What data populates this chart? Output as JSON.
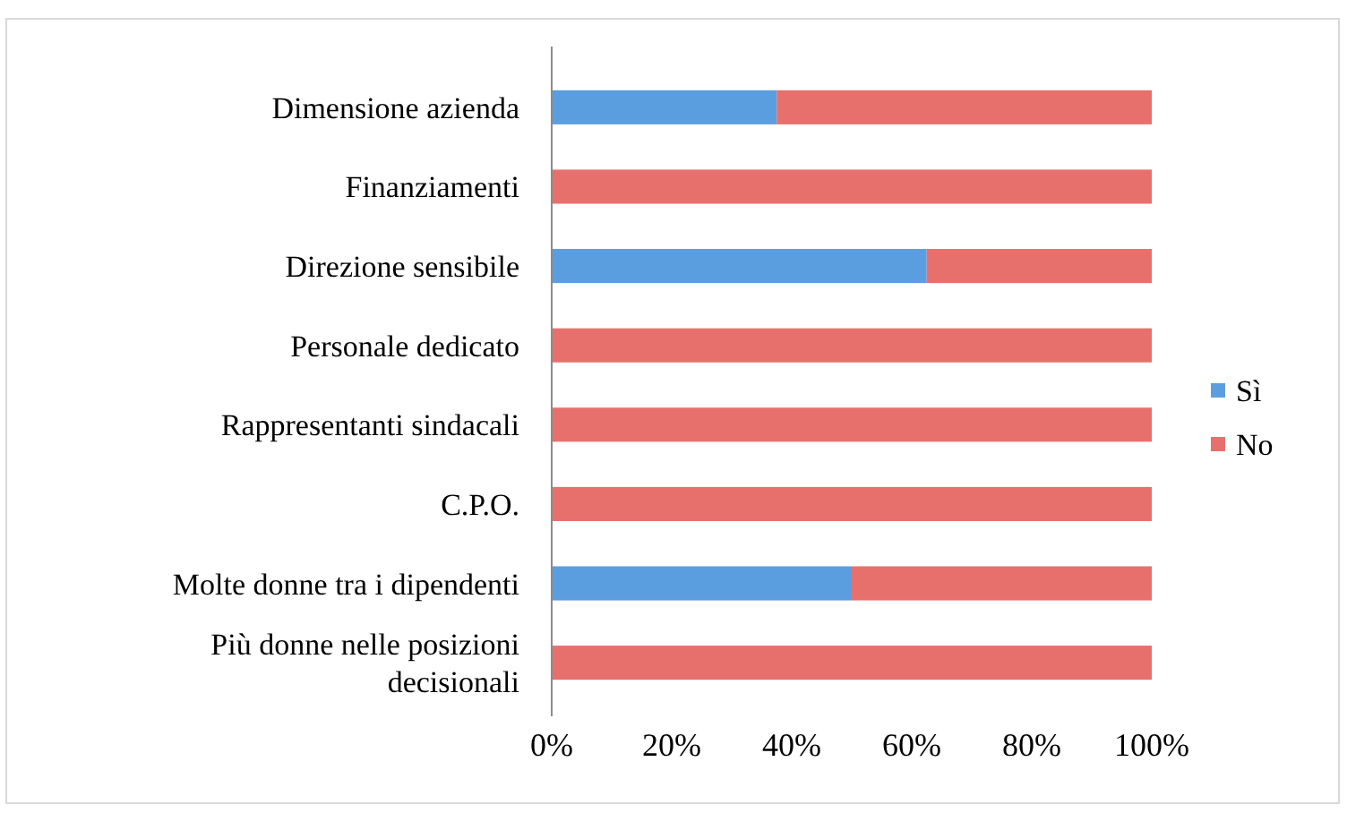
{
  "chart_data": {
    "type": "bar",
    "orientation": "horizontal",
    "stacked": true,
    "categories": [
      "Dimensione azienda",
      "Finanziamenti",
      "Direzione sensibile",
      "Personale dedicato",
      "Rappresentanti sindacali",
      "C.P.O.",
      "Molte donne tra i dipendenti",
      "Più donne nelle posizioni decisionali"
    ],
    "series": [
      {
        "name": "Sì",
        "color": "#5b9ee0",
        "values": [
          37.5,
          0,
          62.5,
          0,
          0,
          0,
          50,
          0
        ]
      },
      {
        "name": "No",
        "color": "#e8706c",
        "values": [
          62.5,
          100,
          37.5,
          100,
          100,
          100,
          50,
          100
        ]
      }
    ],
    "xlim": [
      0,
      100
    ],
    "xticks": [
      {
        "value": 0,
        "label": "0%"
      },
      {
        "value": 20,
        "label": "20%"
      },
      {
        "value": 40,
        "label": "40%"
      },
      {
        "value": 60,
        "label": "60%"
      },
      {
        "value": 80,
        "label": "80%"
      },
      {
        "value": 100,
        "label": "100%"
      }
    ],
    "legend": "right"
  }
}
